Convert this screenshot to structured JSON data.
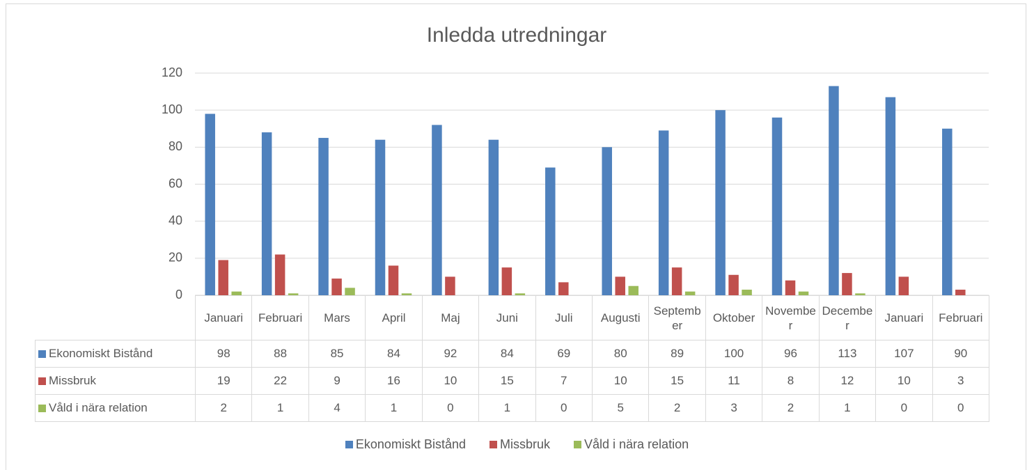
{
  "chart_data": {
    "type": "bar",
    "title": "Inledda utredningar",
    "categories": [
      "Januari",
      "Februari",
      "Mars",
      "April",
      "Maj",
      "Juni",
      "Juli",
      "Augusti",
      "September",
      "Oktober",
      "November",
      "December",
      "Januari",
      "Februari"
    ],
    "series": [
      {
        "name": "Ekonomiskt Bistånd",
        "color": "#4f81bd",
        "values": [
          98,
          88,
          85,
          84,
          92,
          84,
          69,
          80,
          89,
          100,
          96,
          113,
          107,
          90
        ]
      },
      {
        "name": "Missbruk",
        "color": "#c0504d",
        "values": [
          19,
          22,
          9,
          16,
          10,
          15,
          7,
          10,
          15,
          11,
          8,
          12,
          10,
          3
        ]
      },
      {
        "name": "Våld i nära relation",
        "color": "#9bbb59",
        "values": [
          2,
          1,
          4,
          1,
          0,
          1,
          0,
          5,
          2,
          3,
          2,
          1,
          0,
          0
        ]
      }
    ],
    "ylim": [
      0,
      120
    ],
    "yticks": [
      0,
      20,
      40,
      60,
      80,
      100,
      120
    ],
    "grid": true,
    "legend": "bottom",
    "data_table": true
  }
}
